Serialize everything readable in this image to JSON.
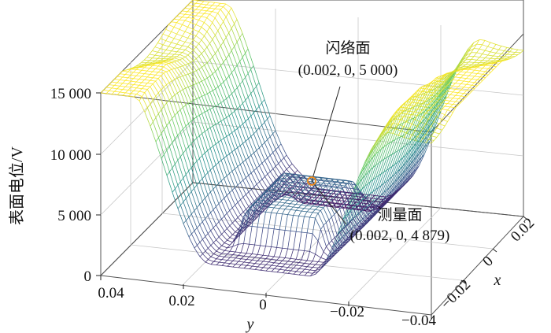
{
  "chart_data": {
    "type": "surface",
    "zlabel": "表面电位/V",
    "xlabel": "x",
    "ylabel": "y",
    "z_ticks": [
      "0",
      "5 000",
      "10 000",
      "15 000"
    ],
    "y_ticks": [
      "0.04",
      "0.02",
      "0",
      "−0.02",
      "−0.04"
    ],
    "x_ticks": [
      "−0.02",
      "0",
      "0.02"
    ],
    "zlim": [
      0,
      15000
    ],
    "ylim": [
      -0.04,
      0.04
    ],
    "xlim": [
      -0.02,
      0.02
    ],
    "colormap": [
      "#440154",
      "#3b528b",
      "#21918c",
      "#5ec962",
      "#fde725"
    ],
    "annotations": [
      {
        "title": "闪络面",
        "coord": "(0.002, 0, 5 000)",
        "x": 0.002,
        "y": 0,
        "z": 5000
      },
      {
        "title": "测量面",
        "coord": "(0.002, 0, 4 879)",
        "x": 0.002,
        "y": 0,
        "z": 4879
      }
    ],
    "marker_color": "#f28e1c"
  }
}
